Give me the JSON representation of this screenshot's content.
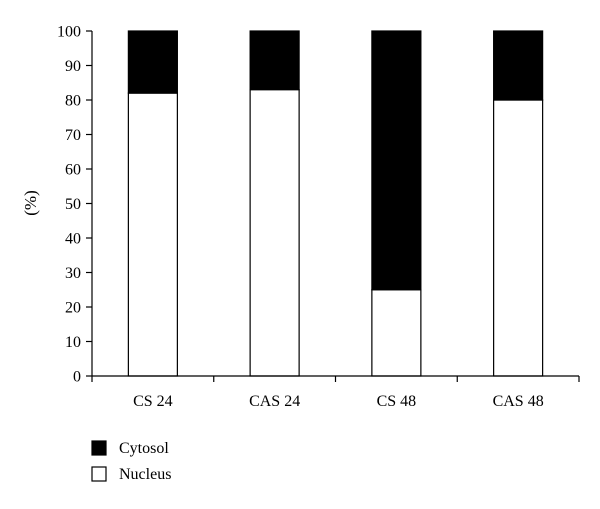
{
  "chart_data": {
    "type": "bar",
    "stacked": true,
    "categories": [
      "CS 24",
      "CAS 24",
      "CS 48",
      "CAS 48"
    ],
    "series": [
      {
        "name": "Nucleus",
        "values": [
          82,
          83,
          25,
          80
        ],
        "color": "#ffffff"
      },
      {
        "name": "Cytosol",
        "values": [
          18,
          17,
          75,
          20
        ],
        "color": "#000000"
      }
    ],
    "title": "",
    "xlabel": "",
    "ylabel": "(%)",
    "ylim": [
      0,
      100
    ],
    "yticks": [
      "0",
      "10",
      "20",
      "30",
      "40",
      "50",
      "60",
      "70",
      "80",
      "90",
      "100"
    ],
    "grid": false,
    "legend": {
      "position": "bottom-left",
      "entries": [
        {
          "label": "Cytosol",
          "color": "#000000"
        },
        {
          "label": "Nucleus",
          "color": "#ffffff"
        }
      ]
    }
  }
}
